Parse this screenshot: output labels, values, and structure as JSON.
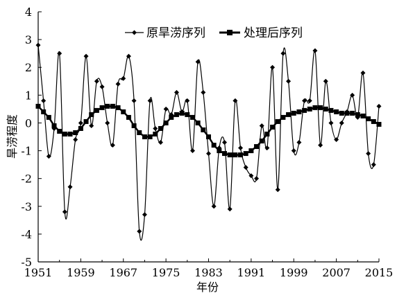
{
  "chart_data": {
    "type": "line",
    "xlabel": "年份",
    "ylabel": "旱涝程度",
    "xlim": [
      1951,
      2015
    ],
    "ylim": [
      -5,
      4
    ],
    "x_ticks": [
      1951,
      1959,
      1967,
      1975,
      1983,
      1991,
      1999,
      2007,
      2015
    ],
    "y_ticks": [
      4,
      3,
      2,
      1,
      0,
      -1,
      -2,
      -3,
      -4,
      -5
    ],
    "grid": false,
    "legend_position": "top-right",
    "x": [
      1951,
      1952,
      1953,
      1954,
      1955,
      1956,
      1957,
      1958,
      1959,
      1960,
      1961,
      1962,
      1963,
      1964,
      1965,
      1966,
      1967,
      1968,
      1969,
      1970,
      1971,
      1972,
      1973,
      1974,
      1975,
      1976,
      1977,
      1978,
      1979,
      1980,
      1981,
      1982,
      1983,
      1984,
      1985,
      1986,
      1987,
      1988,
      1989,
      1990,
      1991,
      1992,
      1993,
      1994,
      1995,
      1996,
      1997,
      1998,
      1999,
      2000,
      2001,
      2002,
      2003,
      2004,
      2005,
      2006,
      2007,
      2008,
      2009,
      2010,
      2011,
      2012,
      2013,
      2014,
      2015
    ],
    "series": [
      {
        "name": "原旱涝序列",
        "marker": "diamond",
        "color": "#000000",
        "values": [
          2.8,
          0.8,
          -1.2,
          -0.2,
          2.5,
          -3.2,
          -2.3,
          -0.6,
          0.0,
          2.4,
          -0.1,
          1.5,
          1.3,
          0.0,
          -0.8,
          1.4,
          1.6,
          2.4,
          0.8,
          -3.9,
          -3.3,
          0.8,
          -0.2,
          -0.7,
          0.5,
          0.3,
          1.1,
          0.4,
          0.8,
          -1.0,
          2.2,
          1.1,
          -1.1,
          -3.0,
          -0.9,
          -0.7,
          -3.1,
          0.8,
          -0.9,
          -1.6,
          -1.9,
          -2.0,
          -0.1,
          -0.9,
          2.0,
          -2.4,
          2.5,
          1.5,
          -1.0,
          -0.7,
          0.8,
          0.8,
          2.6,
          -0.8,
          1.5,
          0.0,
          -0.6,
          0.0,
          0.4,
          1.0,
          0.2,
          1.8,
          -1.1,
          -1.5,
          0.6
        ]
      },
      {
        "name": "处理后序列",
        "marker": "square",
        "color": "#000000",
        "values": [
          0.6,
          0.4,
          0.2,
          -0.1,
          -0.3,
          -0.4,
          -0.4,
          -0.35,
          -0.2,
          0.05,
          0.3,
          0.45,
          0.55,
          0.6,
          0.6,
          0.55,
          0.4,
          0.2,
          -0.1,
          -0.35,
          -0.5,
          -0.5,
          -0.4,
          -0.2,
          0.0,
          0.2,
          0.3,
          0.35,
          0.3,
          0.2,
          0.0,
          -0.25,
          -0.5,
          -0.8,
          -1.0,
          -1.1,
          -1.15,
          -1.15,
          -1.15,
          -1.1,
          -1.0,
          -0.85,
          -0.65,
          -0.4,
          -0.15,
          0.05,
          0.2,
          0.3,
          0.35,
          0.4,
          0.45,
          0.5,
          0.55,
          0.55,
          0.5,
          0.45,
          0.4,
          0.35,
          0.35,
          0.35,
          0.3,
          0.25,
          0.15,
          0.05,
          -0.05
        ]
      }
    ]
  }
}
